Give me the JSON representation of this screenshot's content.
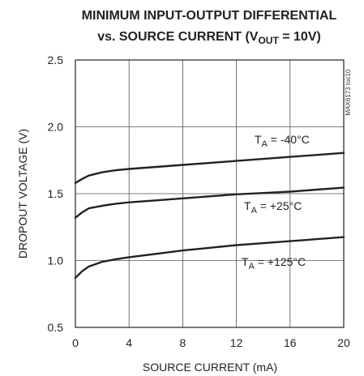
{
  "chart_data": {
    "type": "line",
    "title_line1": "MINIMUM INPUT-OUTPUT DIFFERENTIAL",
    "title_line2_prefix": "vs. SOURCE CURRENT (V",
    "title_line2_sub": "OUT",
    "title_line2_suffix": " = 10V)",
    "xlabel": "SOURCE CURRENT (mA)",
    "ylabel": "DROPOUT VOLTAGE (V)",
    "xlim": [
      0,
      20
    ],
    "ylim": [
      0.5,
      2.5
    ],
    "x_ticks": [
      "0",
      "4",
      "8",
      "12",
      "16",
      "20"
    ],
    "y_ticks": [
      "2.5",
      "2.0",
      "1.5",
      "1.0",
      "0.5"
    ],
    "figure_code": "MAX6173 toc10",
    "grid": true,
    "series": [
      {
        "name_prefix": "T",
        "name_sub": "A",
        "name_suffix": " = -40°C",
        "x": [
          0,
          0.5,
          1,
          2,
          3,
          4,
          6,
          8,
          10,
          12,
          14,
          16,
          18,
          20
        ],
        "y": [
          1.58,
          1.61,
          1.635,
          1.66,
          1.675,
          1.685,
          1.7,
          1.715,
          1.73,
          1.745,
          1.76,
          1.775,
          1.79,
          1.805
        ]
      },
      {
        "name_prefix": "T",
        "name_sub": "A",
        "name_suffix": " = +25°C",
        "x": [
          0,
          0.5,
          1,
          2,
          3,
          4,
          6,
          8,
          10,
          12,
          14,
          16,
          18,
          20
        ],
        "y": [
          1.32,
          1.36,
          1.39,
          1.41,
          1.425,
          1.435,
          1.45,
          1.465,
          1.48,
          1.495,
          1.505,
          1.515,
          1.53,
          1.545
        ]
      },
      {
        "name_prefix": "T",
        "name_sub": "A",
        "name_suffix": " = +125°C",
        "x": [
          0,
          0.5,
          1,
          2,
          3,
          4,
          6,
          8,
          10,
          12,
          14,
          16,
          18,
          20
        ],
        "y": [
          0.87,
          0.92,
          0.955,
          0.99,
          1.01,
          1.025,
          1.05,
          1.075,
          1.095,
          1.115,
          1.13,
          1.145,
          1.16,
          1.175
        ]
      }
    ]
  }
}
